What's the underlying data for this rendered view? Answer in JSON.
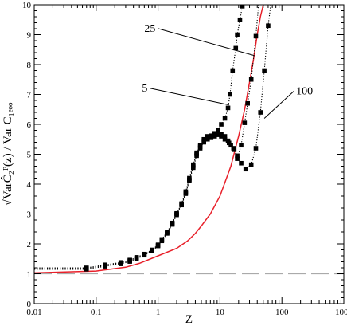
{
  "chart_data": {
    "type": "line",
    "xscale": "log",
    "xlim": [
      0.01,
      1000
    ],
    "ylim": [
      0,
      10
    ],
    "xlabel": "Z",
    "ylabel": "√VarĈ₂ᴾ(z)  /  Var C₁ₑₒₒ",
    "grid": false,
    "xticks": [
      {
        "value": 0.01,
        "label": "0.01"
      },
      {
        "value": 0.1,
        "label": "0.1"
      },
      {
        "value": 1,
        "label": "1"
      },
      {
        "value": 10,
        "label": "10"
      },
      {
        "value": 100,
        "label": "100"
      },
      {
        "value": 1000,
        "label": "1000"
      }
    ],
    "yticks": [
      {
        "value": 0,
        "label": "0"
      },
      {
        "value": 1,
        "label": "1"
      },
      {
        "value": 2,
        "label": "2"
      },
      {
        "value": 3,
        "label": "3"
      },
      {
        "value": 4,
        "label": "4"
      },
      {
        "value": 5,
        "label": "5"
      },
      {
        "value": 6,
        "label": "6"
      },
      {
        "value": 7,
        "label": "7"
      },
      {
        "value": 8,
        "label": "8"
      },
      {
        "value": 9,
        "label": "9"
      },
      {
        "value": 10,
        "label": "10"
      }
    ],
    "annotations": [
      {
        "label": "25",
        "text_x": 0.6,
        "text_y": 9.1,
        "arrow_x": 36,
        "arrow_y": 8.3
      },
      {
        "label": "5",
        "text_x": 0.55,
        "text_y": 7.1,
        "arrow_x": 14,
        "arrow_y": 6.65
      },
      {
        "label": "100",
        "text_x": 170,
        "text_y": 7.0,
        "arrow_x": 52,
        "arrow_y": 6.2
      }
    ],
    "series": [
      {
        "style": "reference-dashed",
        "color": "#aaaaaa",
        "x": [
          0.01,
          1000
        ],
        "y": [
          1.0,
          1.0
        ]
      },
      {
        "style": "solid",
        "color": "#e8202a",
        "x": [
          0.01,
          0.1,
          0.3,
          0.5,
          1,
          2,
          3,
          4,
          5,
          7,
          10,
          15,
          20,
          25,
          30,
          35,
          40,
          45,
          50
        ],
        "y": [
          1.03,
          1.09,
          1.22,
          1.35,
          1.6,
          1.85,
          2.1,
          2.35,
          2.6,
          3.0,
          3.6,
          4.6,
          5.6,
          6.5,
          7.4,
          8.2,
          9.0,
          9.6,
          10.0
        ]
      },
      {
        "style": "dotted-markers",
        "color": "#000000",
        "x": [
          0.01,
          0.07,
          0.14,
          0.25,
          0.35,
          0.45,
          0.6,
          0.8,
          1.0,
          1.15,
          1.4,
          1.7,
          2.0,
          2.4,
          2.8,
          3.2,
          3.7,
          4.2,
          4.8,
          5.5,
          6.3,
          7.2,
          8.2,
          9.3,
          10.5,
          12,
          13.5,
          14.5,
          16,
          18,
          19,
          21,
          23,
          26
        ],
        "y": [
          1.2,
          1.2,
          1.3,
          1.38,
          1.46,
          1.55,
          1.66,
          1.8,
          1.97,
          2.15,
          2.4,
          2.7,
          3.02,
          3.35,
          3.75,
          4.2,
          4.65,
          5.05,
          5.3,
          5.5,
          5.6,
          5.62,
          5.7,
          5.8,
          6.0,
          6.2,
          6.55,
          7.0,
          7.8,
          8.55,
          9.0,
          9.5,
          9.95,
          10.0
        ]
      },
      {
        "style": "dotted-markers",
        "color": "#000000",
        "x": [
          0.01,
          0.07,
          0.14,
          0.25,
          0.35,
          0.45,
          0.6,
          0.8,
          1.0,
          1.15,
          1.4,
          1.7,
          2.0,
          2.4,
          2.8,
          3.2,
          3.7,
          4.2,
          4.8,
          5.5,
          6.3,
          7.2,
          8.2,
          9.3,
          10.5,
          12,
          13.5,
          15,
          17,
          19,
          22,
          25,
          28,
          32,
          38,
          42
        ],
        "y": [
          1.18,
          1.18,
          1.28,
          1.36,
          1.44,
          1.53,
          1.64,
          1.78,
          1.95,
          2.12,
          2.37,
          2.68,
          3.0,
          3.32,
          3.7,
          4.15,
          4.6,
          5.0,
          5.25,
          5.45,
          5.55,
          5.6,
          5.65,
          5.72,
          5.68,
          5.6,
          5.45,
          5.3,
          5.15,
          4.85,
          5.3,
          6.05,
          6.7,
          7.5,
          8.95,
          10.0
        ]
      },
      {
        "style": "dotted-markers",
        "color": "#000000",
        "x": [
          0.01,
          0.07,
          0.14,
          0.25,
          0.35,
          0.45,
          0.6,
          0.8,
          1.0,
          1.15,
          1.4,
          1.7,
          2.0,
          2.4,
          2.8,
          3.2,
          3.7,
          4.2,
          4.8,
          5.5,
          6.3,
          7.2,
          8.2,
          9.3,
          10.5,
          12,
          14,
          16.5,
          19,
          22,
          26,
          32,
          38,
          45,
          52,
          60,
          66
        ],
        "y": [
          1.15,
          1.15,
          1.25,
          1.33,
          1.41,
          1.5,
          1.62,
          1.76,
          1.93,
          2.1,
          2.35,
          2.65,
          2.97,
          3.3,
          3.68,
          4.12,
          4.55,
          4.95,
          5.2,
          5.4,
          5.5,
          5.55,
          5.6,
          5.65,
          5.6,
          5.5,
          5.38,
          5.2,
          4.95,
          4.7,
          4.5,
          4.65,
          5.2,
          6.4,
          7.8,
          9.3,
          10.0
        ]
      }
    ]
  }
}
